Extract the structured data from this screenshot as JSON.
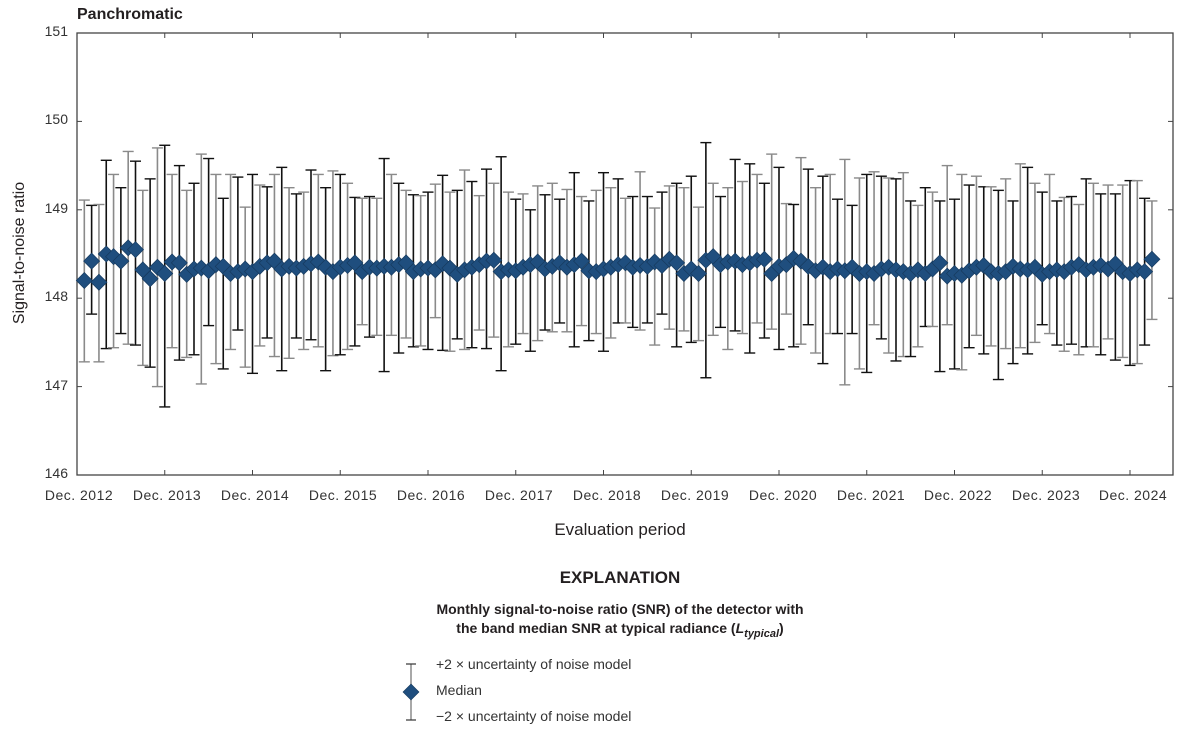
{
  "panel_title": "Panchromatic",
  "axes": {
    "ylabel": "Signal-to-noise ratio",
    "xlabel": "Evaluation period",
    "yticks": [
      "151",
      "150",
      "149",
      "148",
      "147",
      "146"
    ],
    "xticks": [
      "Dec. 2012",
      "Dec. 2013",
      "Dec. 2014",
      "Dec. 2015",
      "Dec. 2016",
      "Dec. 2017",
      "Dec. 2018",
      "Dec. 2019",
      "Dec. 2020",
      "Dec. 2021",
      "Dec. 2022",
      "Dec. 2023",
      "Dec. 2024"
    ]
  },
  "explanation": {
    "title": "EXPLANATION",
    "line1": "Monthly signal-to-noise ratio (SNR) of the detector with",
    "line2_prefix": "the band median SNR at typical radiance (",
    "line2_L": "L",
    "line2_sub": "typical",
    "line2_suffix": ")",
    "legend_upper": "+2 × uncertainty of noise model",
    "legend_median": "Median",
    "legend_lower": "−2 × uncertainty of noise model"
  },
  "colors": {
    "marker": "#1f4e7e",
    "marker_edge": "#163a5e",
    "errorbar_dark": "#111111",
    "errorbar_light": "#8a8a8a",
    "axis": "#444444"
  },
  "chart_data": {
    "type": "scatter",
    "title": "Panchromatic",
    "xlabel": "Evaluation period",
    "ylabel": "Signal-to-noise ratio",
    "ylim": [
      146,
      151
    ],
    "x_tick_labels": [
      "Dec. 2012",
      "Dec. 2013",
      "Dec. 2014",
      "Dec. 2015",
      "Dec. 2016",
      "Dec. 2017",
      "Dec. 2018",
      "Dec. 2019",
      "Dec. 2020",
      "Dec. 2021",
      "Dec. 2022",
      "Dec. 2023",
      "Dec. 2024"
    ],
    "grid": false,
    "legend_position": "below",
    "series": [
      {
        "name": "Median",
        "marker": "diamond"
      },
      {
        "name": "+2 × uncertainty of noise model",
        "role": "upper_error"
      },
      {
        "name": "−2 × uncertainty of noise model",
        "role": "lower_error"
      }
    ],
    "start_month": "2013-01",
    "median": [
      148.2,
      148.42,
      148.18,
      148.5,
      148.47,
      148.42,
      148.57,
      148.55,
      148.32,
      148.22,
      148.35,
      148.28,
      148.41,
      148.4,
      148.27,
      148.33,
      148.34,
      148.31,
      148.38,
      148.36,
      148.28,
      148.3,
      148.33,
      148.3,
      148.36,
      148.4,
      148.42,
      148.33,
      148.36,
      148.34,
      148.36,
      148.39,
      148.41,
      148.35,
      148.3,
      148.35,
      148.37,
      148.4,
      148.3,
      148.35,
      148.34,
      148.36,
      148.35,
      148.38,
      148.4,
      148.3,
      148.33,
      148.34,
      148.32,
      148.39,
      148.34,
      148.27,
      148.32,
      148.35,
      148.38,
      148.42,
      148.43,
      148.3,
      148.32,
      148.31,
      148.35,
      148.38,
      148.41,
      148.33,
      148.36,
      148.4,
      148.35,
      148.38,
      148.42,
      148.31,
      148.3,
      148.33,
      148.35,
      148.38,
      148.4,
      148.35,
      148.37,
      148.36,
      148.41,
      148.37,
      148.44,
      148.4,
      148.28,
      148.33,
      148.28,
      148.43,
      148.47,
      148.38,
      148.41,
      148.42,
      148.38,
      148.4,
      148.43,
      148.44,
      148.28,
      148.36,
      148.38,
      148.45,
      148.42,
      148.36,
      148.31,
      148.35,
      148.3,
      148.33,
      148.31,
      148.35,
      148.28,
      148.3,
      148.28,
      148.33,
      148.35,
      148.32,
      148.3,
      148.28,
      148.32,
      148.28,
      148.33,
      148.4,
      148.25,
      148.28,
      148.26,
      148.31,
      148.35,
      148.37,
      148.3,
      148.28,
      148.3,
      148.36,
      148.33,
      148.32,
      148.35,
      148.27,
      148.3,
      148.32,
      148.3,
      148.35,
      148.38,
      148.32,
      148.35,
      148.37,
      148.33,
      148.39,
      148.3,
      148.28,
      148.32,
      148.3,
      148.44
    ],
    "upper": [
      149.11,
      149.05,
      149.06,
      149.56,
      149.4,
      149.25,
      149.66,
      149.55,
      149.22,
      149.35,
      149.7,
      149.73,
      149.4,
      149.5,
      149.22,
      149.3,
      149.63,
      149.58,
      149.4,
      149.13,
      149.4,
      149.37,
      149.03,
      149.4,
      149.28,
      149.26,
      149.4,
      149.48,
      149.25,
      149.18,
      149.2,
      149.45,
      149.4,
      149.25,
      149.44,
      149.4,
      149.3,
      149.14,
      149.13,
      149.15,
      149.13,
      149.58,
      149.4,
      149.3,
      149.22,
      149.17,
      149.16,
      149.2,
      149.29,
      149.39,
      149.2,
      149.22,
      149.45,
      149.32,
      149.16,
      149.46,
      149.3,
      149.6,
      149.2,
      149.12,
      149.18,
      149.0,
      149.27,
      149.17,
      149.3,
      149.12,
      149.23,
      149.42,
      149.15,
      149.1,
      149.22,
      149.42,
      149.25,
      149.35,
      149.13,
      149.15,
      149.43,
      149.15,
      149.02,
      149.2,
      149.27,
      149.3,
      149.25,
      149.38,
      149.03,
      149.76,
      149.3,
      149.15,
      149.25,
      149.57,
      149.32,
      149.52,
      149.4,
      149.3,
      149.63,
      149.48,
      149.07,
      149.06,
      149.59,
      149.46,
      149.25,
      149.38,
      149.4,
      149.12,
      149.57,
      149.05,
      149.36,
      149.4,
      149.43,
      149.38,
      149.36,
      149.35,
      149.42,
      149.1,
      149.05,
      149.25,
      149.2,
      149.1,
      149.5,
      149.12,
      149.4,
      149.28,
      149.38,
      149.26,
      149.26,
      149.22,
      149.35,
      149.1,
      149.52,
      149.48,
      149.3,
      149.2,
      149.4,
      149.1,
      149.14,
      149.15,
      149.06,
      149.35,
      149.3,
      149.18,
      149.28,
      149.18,
      149.28,
      149.33,
      149.33,
      149.13,
      149.1
    ],
    "lower": [
      147.28,
      147.82,
      147.28,
      147.43,
      147.44,
      147.6,
      147.48,
      147.47,
      147.24,
      147.22,
      147.0,
      146.77,
      147.44,
      147.3,
      147.33,
      147.36,
      147.03,
      147.69,
      147.26,
      147.2,
      147.42,
      147.64,
      147.22,
      147.15,
      147.46,
      147.55,
      147.34,
      147.18,
      147.32,
      147.55,
      147.42,
      147.53,
      147.45,
      147.18,
      147.35,
      147.36,
      147.42,
      147.46,
      147.7,
      147.56,
      147.58,
      147.17,
      147.58,
      147.38,
      147.55,
      147.45,
      147.46,
      147.42,
      147.78,
      147.41,
      147.4,
      147.54,
      147.42,
      147.44,
      147.64,
      147.43,
      147.56,
      147.18,
      147.45,
      147.48,
      147.6,
      147.4,
      147.52,
      147.64,
      147.62,
      147.72,
      147.62,
      147.45,
      147.69,
      147.52,
      147.6,
      147.4,
      147.55,
      147.72,
      147.72,
      147.67,
      147.64,
      147.72,
      147.47,
      147.82,
      147.65,
      147.45,
      147.63,
      147.5,
      147.52,
      147.1,
      147.58,
      147.67,
      147.42,
      147.63,
      147.6,
      147.38,
      147.72,
      147.55,
      147.65,
      147.42,
      147.82,
      147.45,
      147.48,
      147.7,
      147.38,
      147.26,
      147.6,
      147.6,
      147.02,
      147.6,
      147.2,
      147.16,
      147.7,
      147.54,
      147.38,
      147.29,
      147.34,
      147.34,
      147.45,
      147.68,
      147.68,
      147.17,
      147.7,
      147.2,
      147.19,
      147.44,
      147.58,
      147.37,
      147.46,
      147.08,
      147.43,
      147.26,
      147.44,
      147.37,
      147.5,
      147.7,
      147.6,
      147.47,
      147.4,
      147.48,
      147.36,
      147.45,
      147.45,
      147.36,
      147.54,
      147.3,
      147.33,
      147.24,
      147.26,
      147.47,
      147.76
    ]
  }
}
